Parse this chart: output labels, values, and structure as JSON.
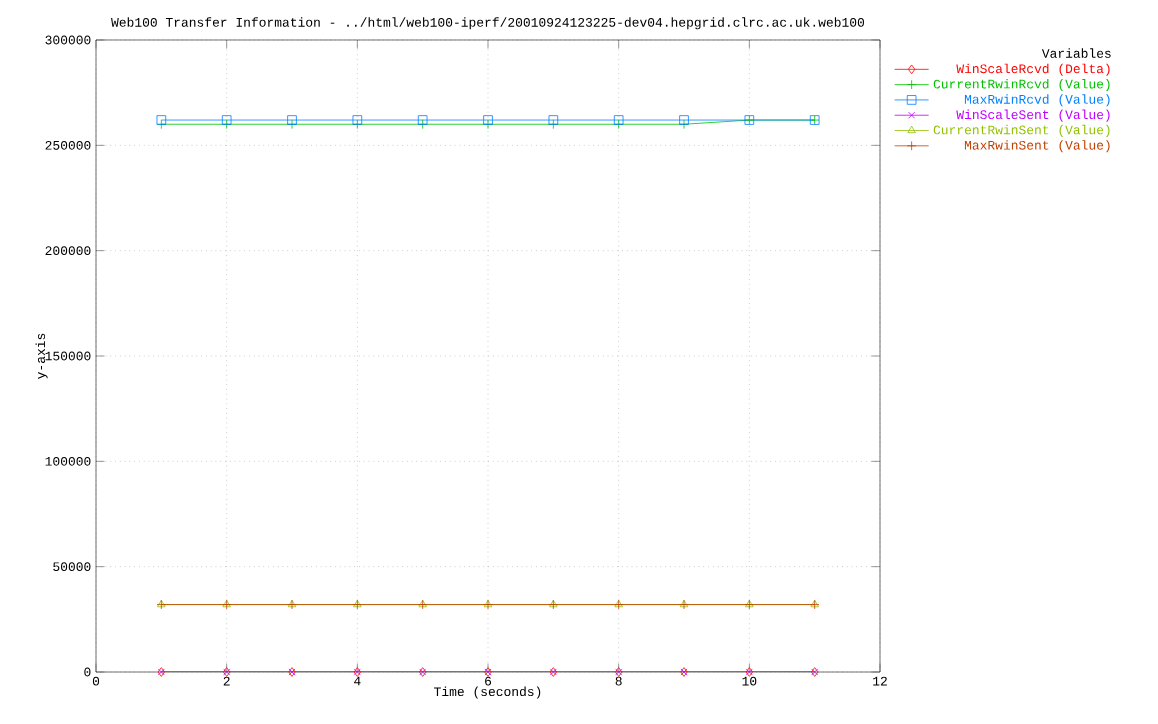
{
  "chart_data": {
    "type": "line",
    "title": "Web100 Transfer Information - ../html/web100-iperf/20010924123225-dev04.hepgrid.clrc.ac.uk.web100",
    "xlabel": "Time (seconds)",
    "ylabel": "y-axis",
    "legend_title": "Variables",
    "legend": "right",
    "grid": true,
    "line_style": "solid",
    "x": [
      1,
      2,
      3,
      4,
      5,
      6,
      7,
      8,
      9,
      10,
      11
    ],
    "xlim": [
      0,
      12
    ],
    "xticks": [
      0,
      2,
      4,
      6,
      8,
      10,
      12
    ],
    "ylim": [
      0,
      300000
    ],
    "yticks": [
      0,
      50000,
      100000,
      150000,
      200000,
      250000,
      300000
    ],
    "series": [
      {
        "name": "WinScaleRcvd (Delta)",
        "color": "#ff0000",
        "marker": "diamond",
        "values": [
          0,
          0,
          0,
          0,
          0,
          0,
          0,
          0,
          0,
          0,
          0
        ]
      },
      {
        "name": "CurrentRwinRcvd (Value)",
        "color": "#00c000",
        "marker": "cross",
        "values": [
          260000,
          260000,
          260000,
          260000,
          260000,
          260000,
          260000,
          260000,
          260000,
          262000,
          262000
        ]
      },
      {
        "name": "MaxRwinRcvd (Value)",
        "color": "#0080ff",
        "marker": "square",
        "values": [
          262000,
          262000,
          262000,
          262000,
          262000,
          262000,
          262000,
          262000,
          262000,
          262000,
          262000
        ]
      },
      {
        "name": "WinScaleSent (Value)",
        "color": "#c000ff",
        "marker": "x",
        "values": [
          0,
          0,
          0,
          0,
          0,
          0,
          0,
          0,
          0,
          0,
          0
        ]
      },
      {
        "name": "CurrentRwinSent (Value)",
        "color": "#90c000",
        "marker": "triangle",
        "values": [
          32000,
          32000,
          32000,
          32000,
          32000,
          32000,
          32000,
          32000,
          32000,
          32000,
          32000
        ]
      },
      {
        "name": "MaxRwinSent (Value)",
        "color": "#c04000",
        "marker": "cross",
        "values": [
          32000,
          32000,
          32000,
          32000,
          32000,
          32000,
          32000,
          32000,
          32000,
          32000,
          32000
        ]
      }
    ]
  }
}
